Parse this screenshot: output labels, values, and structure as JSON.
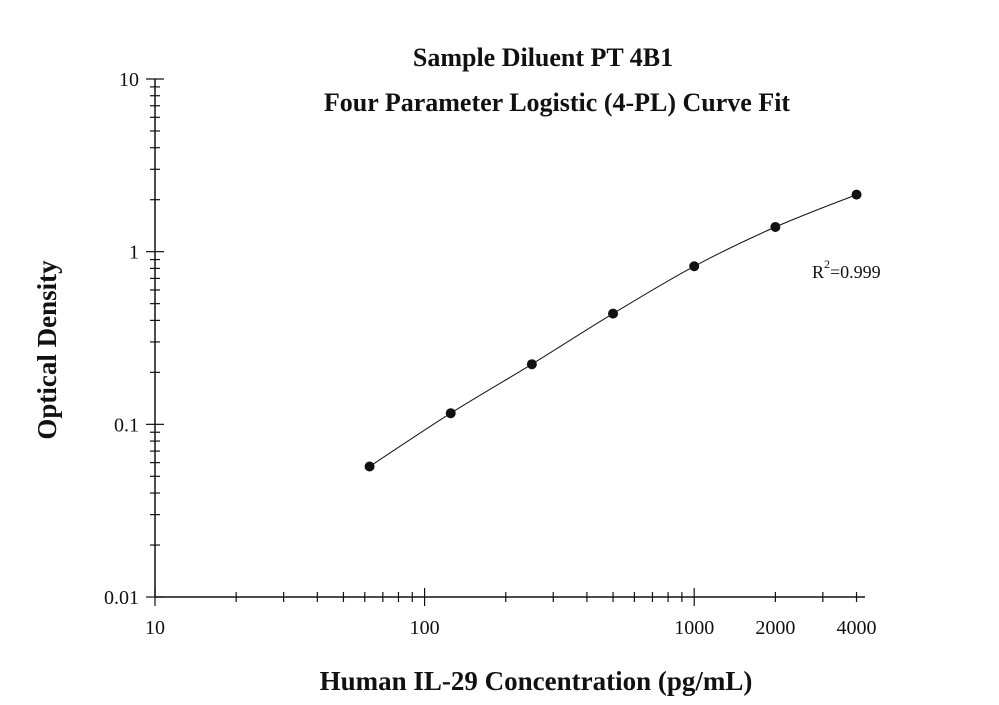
{
  "chart_data": {
    "type": "scatter",
    "title": "Sample Diluent PT 4B1",
    "subtitle": "Four Parameter Logistic (4-PL) Curve Fit",
    "xlabel": "Human IL-29  Concentration (pg/mL)",
    "ylabel": "Optical Density",
    "x_scale": "log",
    "y_scale": "log",
    "xlim": [
      10,
      4300
    ],
    "ylim": [
      0.01,
      10
    ],
    "x_ticks": [
      {
        "value": 10,
        "label": "10"
      },
      {
        "value": 100,
        "label": "100"
      },
      {
        "value": 1000,
        "label": "1000"
      },
      {
        "value": 2000,
        "label": "2000"
      },
      {
        "value": 4000,
        "label": "4000"
      }
    ],
    "y_ticks": [
      {
        "value": 0.01,
        "label": "0.01"
      },
      {
        "value": 0.1,
        "label": "0.1"
      },
      {
        "value": 1,
        "label": "1"
      },
      {
        "value": 10,
        "label": "10"
      }
    ],
    "x": [
      62.5,
      125,
      250,
      500,
      1000,
      2000,
      4000
    ],
    "y": [
      0.057,
      0.116,
      0.223,
      0.438,
      0.823,
      1.39,
      2.14
    ],
    "fit": "4-PL",
    "annotation": {
      "base": "R",
      "sup": "2",
      "rest": "=0.999"
    },
    "grid": false,
    "legend": "none"
  }
}
